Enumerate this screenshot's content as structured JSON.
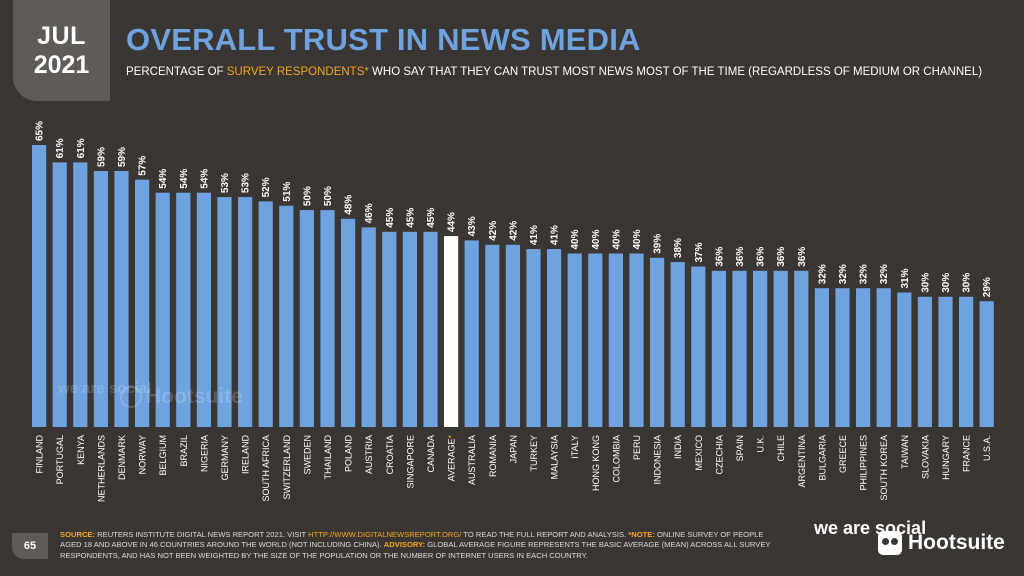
{
  "header": {
    "month": "JUL",
    "year": "2021",
    "title": "OVERALL TRUST IN NEWS MEDIA",
    "subtitle_pre": "PERCENTAGE OF ",
    "subtitle_highlight": "SURVEY RESPONDENTS*",
    "subtitle_post": " WHO SAY THAT THEY CAN TRUST MOST NEWS MOST OF THE TIME (REGARDLESS OF MEDIUM OR CHANNEL)"
  },
  "colors": {
    "background": "#3a3634",
    "bar": "#6fa3e0",
    "highlight_bar": "#ffffff",
    "accent": "#f5a623",
    "title": "#6fa3e0"
  },
  "chart_data": {
    "type": "bar",
    "categories": [
      "FINLAND",
      "PORTUGAL",
      "KENYA",
      "NETHERLANDS",
      "DENMARK",
      "NORWAY",
      "BELGIUM",
      "BRAZIL",
      "NIGERIA",
      "GERMANY",
      "IRELAND",
      "SOUTH AFRICA",
      "SWITZERLAND",
      "SWEDEN",
      "THAILAND",
      "POLAND",
      "AUSTRIA",
      "CROATIA",
      "SINGAPORE",
      "CANADA",
      "AVERAGE",
      "AUSTRALIA",
      "ROMANIA",
      "JAPAN",
      "TURKEY",
      "MALAYSIA",
      "ITALY",
      "HONG KONG",
      "COLOMBIA",
      "PERU",
      "INDONESIA",
      "INDIA",
      "MEXICO",
      "CZECHIA",
      "SPAIN",
      "U.K.",
      "CHILE",
      "ARGENTINA",
      "BULGARIA",
      "GREECE",
      "PHILIPPINES",
      "SOUTH KOREA",
      "TAIWAN",
      "SLOVAKIA",
      "HUNGARY",
      "FRANCE",
      "U.S.A."
    ],
    "values": [
      65,
      61,
      61,
      59,
      59,
      57,
      54,
      54,
      54,
      53,
      53,
      52,
      51,
      50,
      50,
      48,
      46,
      45,
      45,
      45,
      44,
      43,
      42,
      42,
      41,
      41,
      40,
      40,
      40,
      40,
      39,
      38,
      37,
      36,
      36,
      36,
      36,
      36,
      32,
      32,
      32,
      32,
      31,
      30,
      30,
      30,
      29
    ],
    "value_suffix": "%",
    "highlight_category": "AVERAGE",
    "highlight_marker": "*",
    "ylim": [
      0,
      65
    ],
    "grid": false,
    "legend": "none"
  },
  "watermark": {
    "we_are_social": "we are social",
    "hootsuite": "Hootsuite"
  },
  "footer": {
    "page_number": "65",
    "source_label": "SOURCE:",
    "source_text_1": " REUTERS INSTITUTE DIGITAL NEWS REPORT 2021. VISIT ",
    "source_url": "HTTP://WWW.DIGITALNEWSREPORT.ORG/",
    "source_text_2": " TO READ THE FULL REPORT AND ANALYSIS. ",
    "note_label": "*NOTE:",
    "note_text": " ONLINE SURVEY OF PEOPLE AGED 18 AND ABOVE IN 46 COUNTRIES AROUND THE WORLD (NOT INCLUDING CHINA). ",
    "advisory_label": "ADVISORY:",
    "advisory_text": " GLOBAL AVERAGE FIGURE REPRESENTS THE BASIC AVERAGE (MEAN) ACROSS ALL SURVEY RESPONDENTS, AND HAS NOT BEEN WEIGHTED BY THE SIZE OF THE POPULATION OR THE NUMBER OF INTERNET USERS IN EACH COUNTRY.",
    "logo_we": "we are social",
    "logo_hootsuite": "Hootsuite"
  }
}
